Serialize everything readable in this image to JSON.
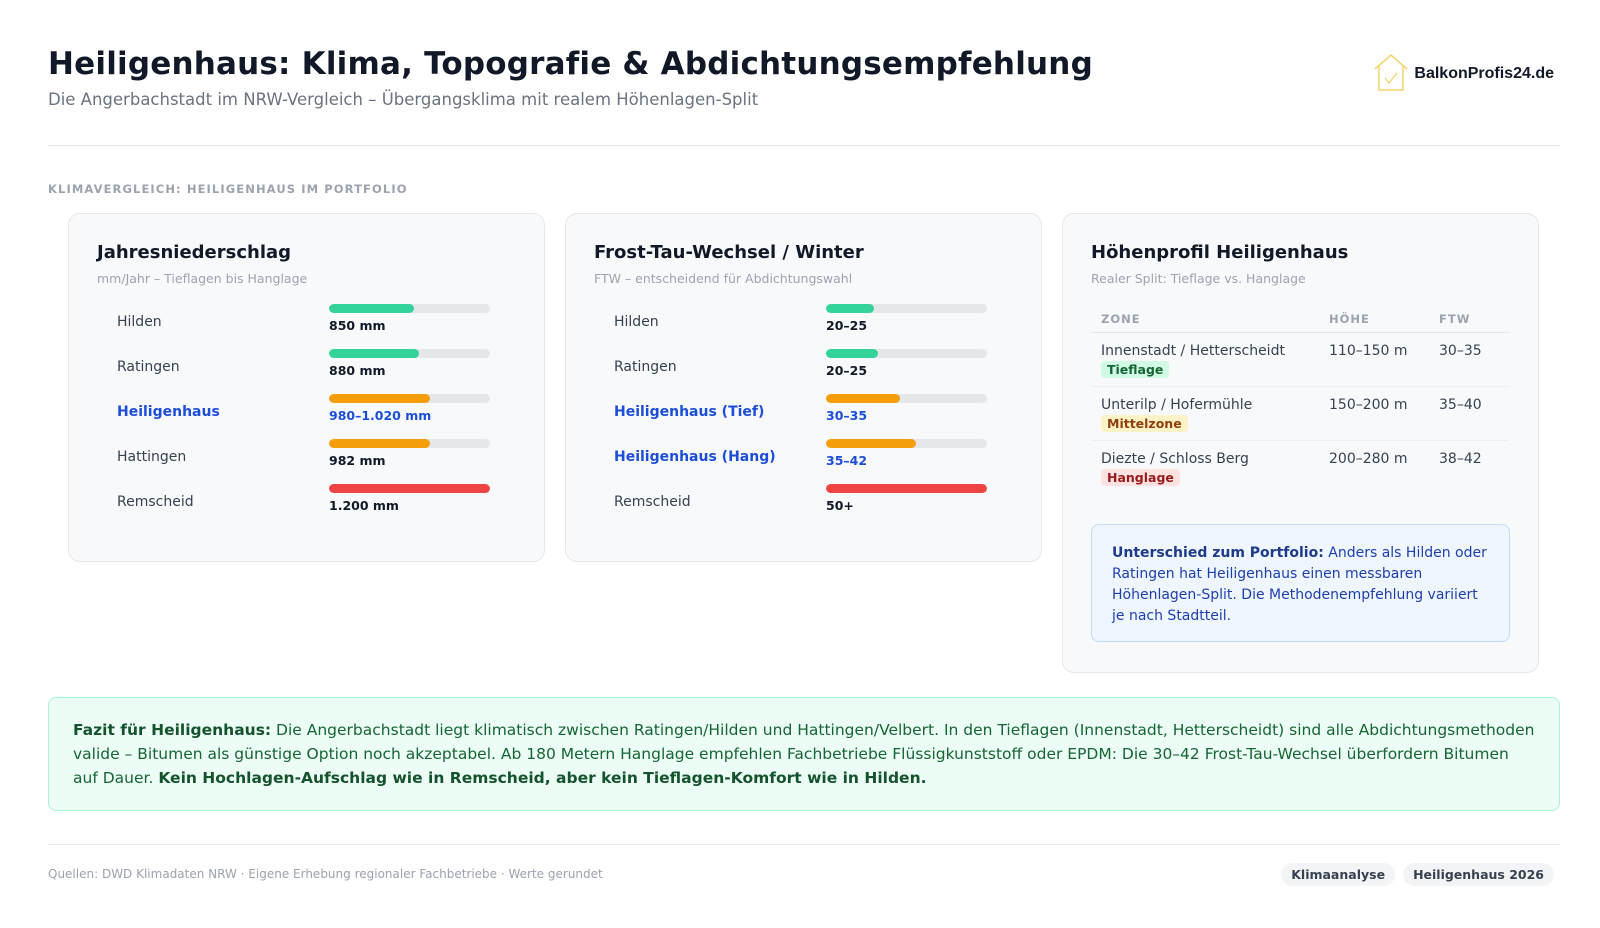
{
  "header": {
    "title": "Heiligenhaus: Klima, Topografie & Abdichtungsempfehlung",
    "subtitle": "Die Angerbachstadt im NRW-Vergleich – Übergangsklima mit realem Höhenlagen-Split",
    "logo_text": "BalkonProfis24.de",
    "logo_icon": "house-check-icon"
  },
  "section_label": "KLIMAVERGLEICH: HEILIGENHAUS IM PORTFOLIO",
  "niederschlag": {
    "title": "Jahresniederschlag",
    "subtitle": "mm/Jahr – Tieflagen bis Hanglage",
    "rows": [
      {
        "label": "Hilden",
        "value": "850 mm",
        "pct": 53,
        "color": "green",
        "highlight": false
      },
      {
        "label": "Ratingen",
        "value": "880 mm",
        "pct": 56,
        "color": "green",
        "highlight": false
      },
      {
        "label": "Heiligenhaus",
        "value": "980–1.020 mm",
        "pct": 63,
        "color": "orange",
        "highlight": true
      },
      {
        "label": "Hattingen",
        "value": "982 mm",
        "pct": 63,
        "color": "orange",
        "highlight": false
      },
      {
        "label": "Remscheid",
        "value": "1.200 mm",
        "pct": 100,
        "color": "red",
        "highlight": false
      }
    ]
  },
  "frost": {
    "title": "Frost-Tau-Wechsel / Winter",
    "subtitle": "FTW – entscheidend für Abdichtungswahl",
    "rows": [
      {
        "label": "Hilden",
        "value": "20–25",
        "pct": 30,
        "color": "green",
        "highlight": false
      },
      {
        "label": "Ratingen",
        "value": "20–25",
        "pct": 32,
        "color": "green",
        "highlight": false
      },
      {
        "label": "Heiligenhaus (Tief)",
        "value": "30–35",
        "pct": 46,
        "color": "orange",
        "highlight": true
      },
      {
        "label": "Heiligenhaus (Hang)",
        "value": "35–42",
        "pct": 56,
        "color": "orange",
        "highlight": true
      },
      {
        "label": "Remscheid",
        "value": "50+",
        "pct": 100,
        "color": "red",
        "highlight": false
      }
    ]
  },
  "hoehenprofil": {
    "title": "Höhenprofil Heiligenhaus",
    "subtitle": "Realer Split: Tieflage vs. Hanglage",
    "columns": [
      "ZONE",
      "HÖHE",
      "FTW"
    ],
    "rows": [
      {
        "zone": "Innenstadt / Hetterscheidt",
        "tag": "Tieflage",
        "tag_color": "green",
        "hoehe": "110–150 m",
        "ftw": "30–35"
      },
      {
        "zone": "Unterilp / Hofermühle",
        "tag": "Mittelzone",
        "tag_color": "yellow",
        "hoehe": "150–200 m",
        "ftw": "35–40"
      },
      {
        "zone": "Diezte / Schloss Berg",
        "tag": "Hanglage",
        "tag_color": "red",
        "hoehe": "200–280 m",
        "ftw": "38–42"
      }
    ],
    "note_bold": "Unterschied zum Portfolio:",
    "note_text": " Anders als Hilden oder Ratingen hat Heiligenhaus einen messbaren Höhenlagen-Split. Die Methodenempfehlung variiert je nach Stadtteil."
  },
  "fazit": {
    "bold_lead": "Fazit für Heiligenhaus:",
    "text": " Die Angerbachstadt liegt klimatisch zwischen Ratingen/Hilden und Hattingen/Velbert. In den Tieflagen (Innenstadt, Hetterscheidt) sind alle Abdichtungsmethoden valide – Bitumen als günstige Option noch akzeptabel. Ab 180 Metern Hanglage empfehlen Fachbetriebe Flüssigkunststoff oder EPDM: Die 30–42 Frost-Tau-Wechsel überfordern Bitumen auf Dauer. ",
    "bold_end": "Kein Hochlagen-Aufschlag wie in Remscheid, aber kein Tieflagen-Komfort wie in Hilden."
  },
  "footer": {
    "sources": "Quellen: DWD Klimadaten NRW · Eigene Erhebung regionaler Fachbetriebe · Werte gerundet",
    "badges": [
      "Klimaanalyse",
      "Heiligenhaus 2026"
    ]
  },
  "colors": {
    "green": "#34d399",
    "orange": "#f59e0b",
    "red": "#ef4444",
    "highlight": "#1d4ed8"
  },
  "chart_data": [
    {
      "type": "bar",
      "title": "Jahresniederschlag",
      "ylabel": "mm/Jahr",
      "categories": [
        "Hilden",
        "Ratingen",
        "Heiligenhaus",
        "Hattingen",
        "Remscheid"
      ],
      "values": [
        850,
        880,
        1000,
        982,
        1200
      ],
      "labels": [
        "850 mm",
        "880 mm",
        "980–1.020 mm",
        "982 mm",
        "1.200 mm"
      ],
      "orientation": "horizontal"
    },
    {
      "type": "bar",
      "title": "Frost-Tau-Wechsel / Winter",
      "ylabel": "FTW",
      "categories": [
        "Hilden",
        "Ratingen",
        "Heiligenhaus (Tief)",
        "Heiligenhaus (Hang)",
        "Remscheid"
      ],
      "values": [
        22.5,
        22.5,
        32.5,
        38.5,
        50
      ],
      "labels": [
        "20–25",
        "20–25",
        "30–35",
        "35–42",
        "50+"
      ],
      "orientation": "horizontal"
    }
  ]
}
